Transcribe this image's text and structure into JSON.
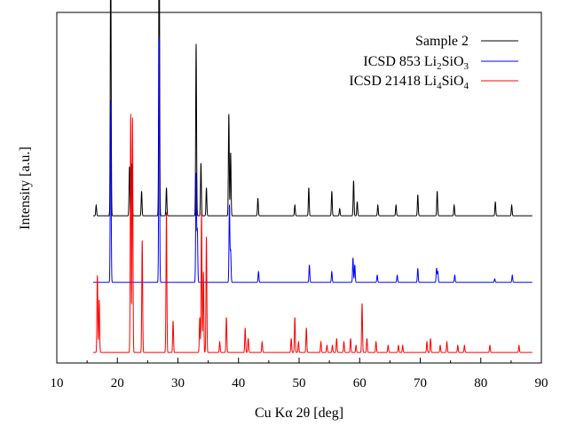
{
  "chart_data": {
    "type": "line",
    "xlabel": "Cu Kα 2θ [deg]",
    "ylabel": "Intensity [a.u.]",
    "xlim": [
      10,
      90
    ],
    "x_ticks": [
      10,
      20,
      30,
      40,
      50,
      60,
      70,
      80,
      90
    ],
    "y_tick_labels": false,
    "grid": false,
    "legend_position": "top-right",
    "legend_parts": [
      [
        "Sample 2"
      ],
      [
        "ICSD 853 Li",
        "2",
        "SiO",
        "3"
      ],
      [
        "ICSD 21418 Li",
        "4",
        "SiO",
        "4"
      ]
    ],
    "series": [
      {
        "name": "Sample 2",
        "color": "#000000",
        "baseline": 0.42,
        "peaks": [
          [
            16.5,
            0.03
          ],
          [
            18.9,
            0.77
          ],
          [
            22.0,
            0.14
          ],
          [
            22.4,
            0.15
          ],
          [
            24.0,
            0.07
          ],
          [
            26.9,
            0.91
          ],
          [
            28.1,
            0.08
          ],
          [
            33.0,
            0.49
          ],
          [
            33.8,
            0.15
          ],
          [
            34.7,
            0.08
          ],
          [
            38.4,
            0.29
          ],
          [
            38.7,
            0.18
          ],
          [
            43.2,
            0.05
          ],
          [
            49.3,
            0.03
          ],
          [
            51.6,
            0.08
          ],
          [
            55.4,
            0.07
          ],
          [
            56.7,
            0.02
          ],
          [
            59.0,
            0.1
          ],
          [
            59.6,
            0.04
          ],
          [
            63.0,
            0.03
          ],
          [
            66.0,
            0.03
          ],
          [
            69.6,
            0.06
          ],
          [
            72.8,
            0.07
          ],
          [
            75.6,
            0.03
          ],
          [
            82.4,
            0.04
          ],
          [
            85.1,
            0.03
          ]
        ]
      },
      {
        "name": "ICSD 853 Li2SiO3",
        "color": "#0000ff",
        "baseline": 0.23,
        "peaks": [
          [
            18.9,
            0.52
          ],
          [
            26.9,
            0.7
          ],
          [
            33.0,
            0.31
          ],
          [
            33.2,
            0.15
          ],
          [
            38.5,
            0.22
          ],
          [
            38.7,
            0.09
          ],
          [
            43.3,
            0.03
          ],
          [
            51.7,
            0.05
          ],
          [
            55.4,
            0.03
          ],
          [
            58.9,
            0.07
          ],
          [
            59.2,
            0.05
          ],
          [
            62.9,
            0.02
          ],
          [
            66.2,
            0.02
          ],
          [
            69.6,
            0.04
          ],
          [
            72.7,
            0.04
          ],
          [
            72.9,
            0.03
          ],
          [
            75.7,
            0.02
          ],
          [
            82.3,
            0.01
          ],
          [
            85.2,
            0.02
          ]
        ]
      },
      {
        "name": "ICSD 21418 Li4SiO4",
        "color": "#ff0000",
        "baseline": 0.03,
        "peaks": [
          [
            16.7,
            0.22
          ],
          [
            17.0,
            0.15
          ],
          [
            22.2,
            0.68
          ],
          [
            22.5,
            0.67
          ],
          [
            24.1,
            0.32
          ],
          [
            28.1,
            0.4
          ],
          [
            29.2,
            0.09
          ],
          [
            33.6,
            0.1
          ],
          [
            33.9,
            0.4
          ],
          [
            34.2,
            0.23
          ],
          [
            34.7,
            0.33
          ],
          [
            36.9,
            0.03
          ],
          [
            38.0,
            0.1
          ],
          [
            41.1,
            0.07
          ],
          [
            41.6,
            0.04
          ],
          [
            43.9,
            0.03
          ],
          [
            48.7,
            0.04
          ],
          [
            49.3,
            0.1
          ],
          [
            49.9,
            0.03
          ],
          [
            51.2,
            0.07
          ],
          [
            53.6,
            0.03
          ],
          [
            54.6,
            0.02
          ],
          [
            55.5,
            0.02
          ],
          [
            56.2,
            0.04
          ],
          [
            57.4,
            0.03
          ],
          [
            58.5,
            0.04
          ],
          [
            59.4,
            0.02
          ],
          [
            60.4,
            0.14
          ],
          [
            61.2,
            0.04
          ],
          [
            62.7,
            0.03
          ],
          [
            64.7,
            0.02
          ],
          [
            66.4,
            0.02
          ],
          [
            67.1,
            0.02
          ],
          [
            71.1,
            0.03
          ],
          [
            71.7,
            0.04
          ],
          [
            73.3,
            0.02
          ],
          [
            74.4,
            0.03
          ],
          [
            76.2,
            0.02
          ],
          [
            77.3,
            0.02
          ],
          [
            81.5,
            0.02
          ],
          [
            86.3,
            0.02
          ]
        ]
      }
    ]
  }
}
